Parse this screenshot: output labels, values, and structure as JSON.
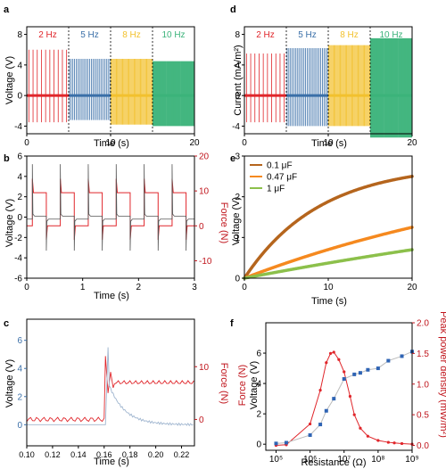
{
  "panels": {
    "a": {
      "letter": "a",
      "ylabel": "Voltage (V)",
      "xlabel": "Time (s)"
    },
    "b": {
      "letter": "b",
      "ylabel": "Voltage (V)",
      "ylabel_right": "Force (N)",
      "xlabel": "Time (s)"
    },
    "c": {
      "letter": "c",
      "ylabel": "Voltage (V)",
      "ylabel_right": "Force (N)",
      "xlabel": "Time (s)"
    },
    "d": {
      "letter": "d",
      "ylabel": "Current (mA/m²)",
      "xlabel": "Time (s)"
    },
    "e": {
      "letter": "e",
      "ylabel": "Voltage (V)",
      "xlabel": "Time (s)"
    },
    "f": {
      "letter": "f",
      "ylabel": "Voltage (V)",
      "ylabel_force": "Force (N)",
      "ylabel_right": "Peak power density (mW/m²)",
      "xlabel": "Resistance (Ω)"
    }
  },
  "colors": {
    "red": "#e0262b",
    "blue": "#3a6fa8",
    "yellow": "#f2c12e",
    "green": "#3bb37a",
    "gray": "#555555",
    "orange_dark": "#b5651d",
    "orange": "#f5891f",
    "lime": "#8cc04b",
    "axis_red": "#c0161d",
    "square_blue": "#2f64b4"
  },
  "chart_data": [
    {
      "id": "a",
      "type": "line",
      "xlim": [
        0,
        20
      ],
      "ylim": [
        -5,
        9
      ],
      "xticks": [
        "0",
        "10",
        "20"
      ],
      "yticks": [
        "-4",
        "0",
        "4",
        "8"
      ],
      "segments": [
        {
          "label": "2 Hz",
          "from": 0,
          "to": 5,
          "freq": 2,
          "amp_pos": 6,
          "amp_neg": -3.5,
          "color": "red"
        },
        {
          "label": "5 Hz",
          "from": 5,
          "to": 10,
          "freq": 5,
          "amp_pos": 4.8,
          "amp_neg": -3.2,
          "color": "blue"
        },
        {
          "label": "8 Hz",
          "from": 10,
          "to": 15,
          "freq": 8,
          "amp_pos": 4.8,
          "amp_neg": -3.8,
          "color": "yellow"
        },
        {
          "label": "10 Hz",
          "from": 15,
          "to": 20,
          "freq": 10,
          "amp_pos": 4.5,
          "amp_neg": -4.0,
          "color": "green"
        }
      ]
    },
    {
      "id": "b",
      "type": "line",
      "xlim": [
        0,
        3
      ],
      "ylim": [
        -6,
        6
      ],
      "ylim_right": [
        -15,
        20
      ],
      "xticks": [
        "0",
        "1",
        "2",
        "3"
      ],
      "yticks": [
        "-6",
        "-4",
        "-2",
        "0",
        "2",
        "4",
        "6"
      ],
      "yticks_right": [
        "-10",
        "0",
        "10",
        "20"
      ],
      "series": [
        {
          "axis": "left",
          "color": "gray",
          "period": 0.5,
          "spike_pos": 5.2,
          "spike_neg": -3.3
        },
        {
          "axis": "right",
          "color": "red",
          "period": 0.5,
          "high": 9.5,
          "low": 0
        }
      ]
    },
    {
      "id": "c",
      "type": "line",
      "xlim": [
        0.1,
        0.23
      ],
      "ylim": [
        -1.5,
        7.5
      ],
      "ylim_right": [
        -5,
        19
      ],
      "xticks": [
        "0.10",
        "0.12",
        "0.14",
        "0.16",
        "0.18",
        "0.20",
        "0.22"
      ],
      "yticks": [
        "0",
        "2",
        "4",
        "6"
      ],
      "yticks_right": [
        "0",
        "10"
      ],
      "series": [
        {
          "axis": "left",
          "color": "blue",
          "peak_time": 0.163,
          "peak": 5.5
        },
        {
          "axis": "right",
          "color": "red",
          "step_time": 0.161,
          "low": 0,
          "high": 7
        }
      ]
    },
    {
      "id": "d",
      "type": "line",
      "xlim": [
        0,
        20
      ],
      "ylim": [
        -5,
        9
      ],
      "xticks": [
        "0",
        "10",
        "20"
      ],
      "yticks": [
        "-4",
        "0",
        "4",
        "8"
      ],
      "segments": [
        {
          "label": "2 Hz",
          "from": 0,
          "to": 5,
          "freq": 2,
          "amp_pos": 5.5,
          "amp_neg": -3.5,
          "color": "red"
        },
        {
          "label": "5 Hz",
          "from": 5,
          "to": 10,
          "freq": 5,
          "amp_pos": 6.2,
          "amp_neg": -4.0,
          "color": "blue"
        },
        {
          "label": "8 Hz",
          "from": 10,
          "to": 15,
          "freq": 8,
          "amp_pos": 6.6,
          "amp_neg": -4.0,
          "color": "yellow"
        },
        {
          "label": "10 Hz",
          "from": 15,
          "to": 20,
          "freq": 10,
          "amp_pos": 7.5,
          "amp_neg": -5.5,
          "color": "green"
        }
      ]
    },
    {
      "id": "e",
      "type": "line",
      "xlim": [
        0,
        20
      ],
      "ylim": [
        0,
        3
      ],
      "xticks": [
        "0",
        "10",
        "20"
      ],
      "yticks": [
        "0",
        "1",
        "2",
        "3"
      ],
      "legend_position": "top-left",
      "series": [
        {
          "name": "0.1 μF",
          "color": "orange_dark",
          "final": 2.5,
          "tau": 9
        },
        {
          "name": "0.47 μF",
          "color": "orange",
          "final": 1.25,
          "tau": 40
        },
        {
          "name": "1 μF",
          "color": "lime",
          "final": 0.7,
          "tau": 80
        }
      ]
    },
    {
      "id": "f",
      "type": "scatter",
      "xscale": "log",
      "xlim": [
        50000,
        1000000000
      ],
      "xticks": [
        "10⁵",
        "10⁶",
        "10⁷",
        "10⁸",
        "10⁹"
      ],
      "ylim": [
        -0.4,
        8
      ],
      "yticks": [
        "0",
        "2",
        "4",
        "6"
      ],
      "ylim_right": [
        -0.08,
        2.0
      ],
      "yticks_right": [
        "0.0",
        "0.5",
        "1.0",
        "1.5",
        "2.0"
      ],
      "series": [
        {
          "axis": "left",
          "color": "square_blue",
          "marker": "square",
          "x": [
            100000,
            200000,
            1000000,
            2000000,
            3000000,
            5000000,
            10000000,
            20000000,
            30000000,
            50000000,
            100000000,
            200000000,
            500000000,
            1000000000
          ],
          "y": [
            0.05,
            0.1,
            0.6,
            1.3,
            2.2,
            3.0,
            4.3,
            4.6,
            4.7,
            4.9,
            5.0,
            5.5,
            5.8,
            6.1
          ]
        },
        {
          "axis": "right",
          "color": "red",
          "marker": "circle",
          "x": [
            100000,
            200000,
            1000000,
            2000000,
            3000000,
            4000000,
            5000000,
            7000000,
            10000000,
            15000000,
            20000000,
            30000000,
            50000000,
            100000000,
            200000000,
            300000000,
            500000000,
            1000000000
          ],
          "y": [
            0.0,
            0.01,
            0.35,
            0.9,
            1.35,
            1.5,
            1.52,
            1.4,
            1.2,
            0.8,
            0.5,
            0.28,
            0.15,
            0.08,
            0.05,
            0.04,
            0.03,
            0.02
          ]
        }
      ]
    }
  ]
}
